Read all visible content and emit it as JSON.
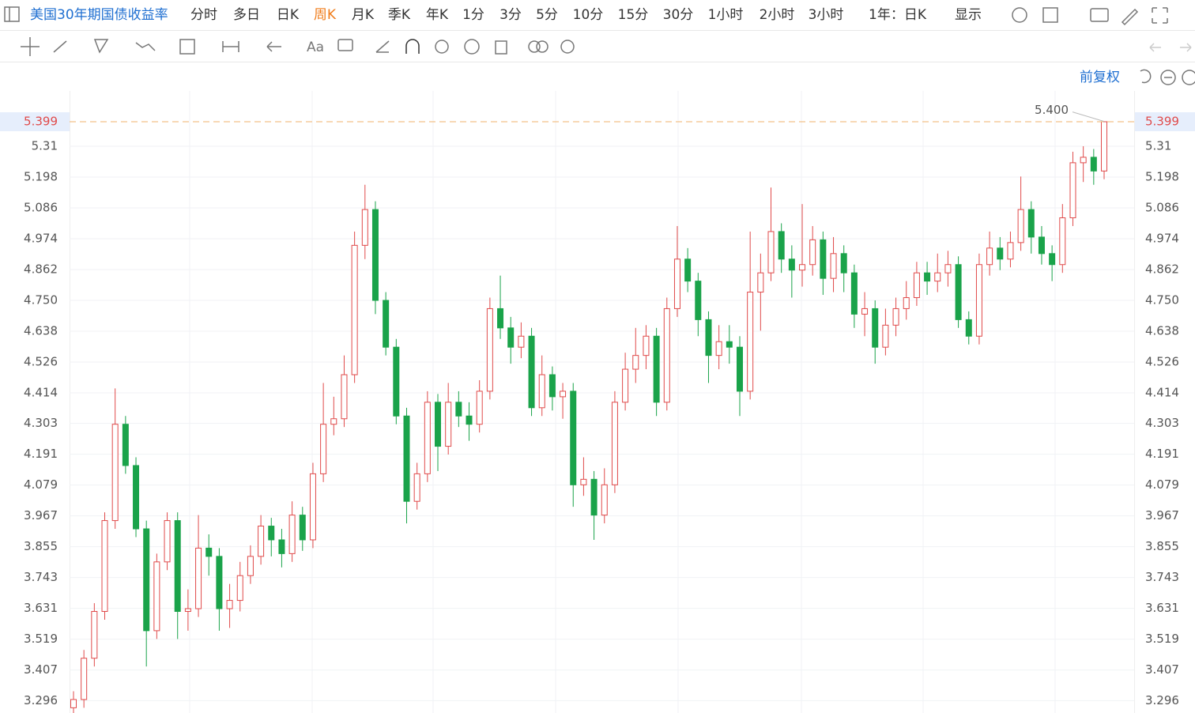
{
  "toolbar": {
    "title": "美国30年期国债收益率",
    "periods": [
      "分时",
      "多日",
      "日K",
      "周K",
      "月K",
      "季K",
      "年K",
      "1分",
      "3分",
      "5分",
      "10分",
      "15分",
      "30分",
      "1小时",
      "2小时",
      "3小时"
    ],
    "range": "1年：日K",
    "display": "显示",
    "font_tool": "Aa",
    "adjust": "前复权"
  },
  "chart_data": {
    "type": "candlestick",
    "up_color": "#e04a4a",
    "down_color": "#1aa34a",
    "grid": true,
    "ylim": [
      3.251,
      5.511
    ],
    "yticks": [
      3.296,
      3.407,
      3.519,
      3.631,
      3.743,
      3.855,
      3.967,
      4.079,
      4.191,
      4.303,
      4.414,
      4.526,
      4.638,
      {
        "value": 4.75,
        "label": "4.750"
      },
      4.862,
      4.974,
      5.086,
      5.198,
      5.31
    ],
    "max_label": "5.400",
    "open": [
      3.27,
      3.3,
      3.45,
      3.62,
      3.95,
      4.3,
      4.15,
      3.92,
      3.55,
      3.8,
      3.95,
      3.62,
      3.63,
      3.85,
      3.82,
      3.63,
      3.66,
      3.75,
      3.82,
      3.93,
      3.88,
      3.83,
      3.97,
      3.88,
      4.12,
      4.3,
      4.32,
      4.48,
      4.95,
      5.08,
      4.75,
      4.58,
      4.33,
      4.02,
      4.12,
      4.38,
      4.22,
      4.38,
      4.33,
      4.3,
      4.42,
      4.72,
      4.65,
      4.58,
      4.62,
      4.36,
      4.48,
      4.4,
      4.42,
      4.08,
      4.1,
      3.97,
      4.08,
      4.38,
      4.5,
      4.55,
      4.62,
      4.38,
      4.72,
      4.9,
      4.82,
      4.68,
      4.55,
      4.6,
      4.58,
      4.42,
      4.78,
      4.85,
      5.0,
      4.9,
      4.86,
      4.88,
      4.97,
      4.83,
      4.92,
      4.85,
      4.7,
      4.72,
      4.58,
      4.66,
      4.72,
      4.76,
      4.85,
      4.82,
      4.85,
      4.88,
      4.68,
      4.62,
      4.88,
      4.94,
      4.9,
      4.96,
      5.08,
      4.98,
      4.92,
      4.88,
      5.05,
      5.25,
      5.27,
      5.22
    ],
    "high": [
      3.33,
      3.48,
      3.65,
      3.98,
      4.43,
      4.33,
      4.18,
      3.95,
      3.83,
      3.98,
      3.98,
      3.7,
      3.97,
      3.9,
      3.85,
      3.72,
      3.8,
      3.86,
      3.97,
      3.96,
      3.92,
      4.02,
      4.0,
      4.16,
      4.45,
      4.4,
      4.55,
      5.0,
      5.17,
      5.11,
      4.78,
      4.61,
      4.36,
      4.16,
      4.42,
      4.41,
      4.45,
      4.42,
      4.38,
      4.46,
      4.76,
      4.84,
      4.69,
      4.67,
      4.65,
      4.55,
      4.51,
      4.45,
      4.45,
      4.18,
      4.13,
      4.14,
      4.42,
      4.56,
      4.65,
      4.66,
      4.65,
      4.76,
      5.02,
      4.94,
      4.85,
      4.71,
      4.66,
      4.66,
      4.62,
      5.0,
      4.92,
      5.16,
      5.03,
      4.95,
      5.1,
      5.02,
      5.0,
      4.98,
      4.95,
      4.88,
      4.78,
      4.75,
      4.72,
      4.76,
      4.82,
      4.89,
      4.89,
      4.92,
      4.93,
      4.91,
      4.71,
      4.92,
      5.0,
      4.98,
      5.0,
      5.2,
      5.11,
      5.02,
      4.95,
      5.1,
      5.29,
      5.31,
      5.3,
      5.4
    ],
    "low": [
      3.24,
      3.27,
      3.42,
      3.59,
      3.92,
      4.12,
      3.89,
      3.42,
      3.52,
      3.77,
      3.52,
      3.55,
      3.6,
      3.75,
      3.55,
      3.56,
      3.62,
      3.72,
      3.79,
      3.82,
      3.78,
      3.8,
      3.84,
      3.85,
      4.09,
      4.26,
      4.29,
      4.45,
      4.9,
      4.7,
      4.55,
      4.3,
      3.94,
      3.99,
      4.09,
      4.13,
      4.19,
      4.29,
      4.24,
      4.27,
      4.39,
      4.61,
      4.52,
      4.54,
      4.33,
      4.33,
      4.35,
      4.32,
      4.0,
      4.04,
      3.88,
      3.94,
      4.05,
      4.35,
      4.45,
      4.5,
      4.33,
      4.35,
      4.69,
      4.78,
      4.62,
      4.45,
      4.5,
      4.52,
      4.33,
      4.39,
      4.64,
      4.82,
      4.85,
      4.76,
      4.8,
      4.84,
      4.77,
      4.78,
      4.78,
      4.65,
      4.62,
      4.52,
      4.55,
      4.62,
      4.68,
      4.73,
      4.77,
      4.78,
      4.8,
      4.65,
      4.59,
      4.59,
      4.84,
      4.86,
      4.87,
      4.93,
      4.92,
      4.88,
      4.82,
      4.85,
      5.02,
      5.18,
      5.17,
      5.19
    ],
    "close": [
      3.3,
      3.45,
      3.62,
      3.95,
      4.3,
      4.15,
      3.92,
      3.55,
      3.8,
      3.95,
      3.62,
      3.63,
      3.85,
      3.82,
      3.63,
      3.66,
      3.75,
      3.82,
      3.93,
      3.88,
      3.83,
      3.97,
      3.88,
      4.12,
      4.3,
      4.32,
      4.48,
      4.95,
      5.08,
      4.75,
      4.58,
      4.33,
      4.02,
      4.12,
      4.38,
      4.22,
      4.38,
      4.33,
      4.3,
      4.42,
      4.72,
      4.65,
      4.58,
      4.62,
      4.36,
      4.48,
      4.4,
      4.42,
      4.08,
      4.1,
      3.97,
      4.08,
      4.38,
      4.5,
      4.55,
      4.62,
      4.38,
      4.72,
      4.9,
      4.82,
      4.68,
      4.55,
      4.6,
      4.58,
      4.42,
      4.78,
      4.85,
      5.0,
      4.9,
      4.86,
      4.88,
      4.97,
      4.83,
      4.92,
      4.85,
      4.7,
      4.72,
      4.58,
      4.66,
      4.72,
      4.76,
      4.85,
      4.82,
      4.85,
      4.88,
      4.68,
      4.62,
      4.88,
      4.94,
      4.9,
      4.96,
      5.08,
      4.98,
      4.92,
      4.88,
      5.05,
      5.25,
      5.27,
      5.22,
      5.399
    ]
  }
}
